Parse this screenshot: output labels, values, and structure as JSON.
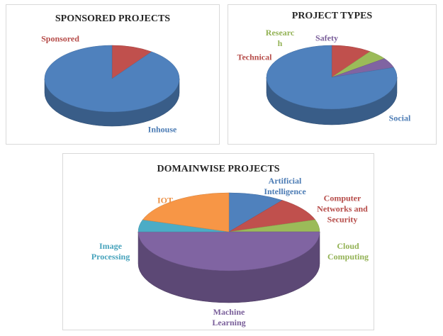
{
  "chart_data": [
    {
      "type": "pie",
      "title": "SPONSORED PROJECTS",
      "categories": [
        "Sponsored",
        "Inhouse"
      ],
      "values": [
        10,
        90
      ],
      "colors": [
        "#c0504d",
        "#4f81bd"
      ]
    },
    {
      "type": "pie",
      "title": "PROJECT TYPES",
      "categories": [
        "Technical",
        "Research",
        "Safety",
        "Social"
      ],
      "values": [
        10,
        5,
        5,
        80
      ],
      "colors": [
        "#c0504d",
        "#9bbb59",
        "#8064a2",
        "#4f81bd"
      ]
    },
    {
      "type": "pie",
      "title": "DOMAINWISE PROJECTS",
      "categories": [
        "Artificial Intelligence",
        "Computer Networks and Security",
        "Cloud Computing",
        "Machine Learning",
        "Image Processing",
        "IOT"
      ],
      "values": [
        10,
        10,
        5,
        50,
        5,
        20
      ],
      "colors": [
        "#4f81bd",
        "#c0504d",
        "#9bbb59",
        "#8064a2",
        "#4bacc6",
        "#f79646"
      ]
    }
  ]
}
